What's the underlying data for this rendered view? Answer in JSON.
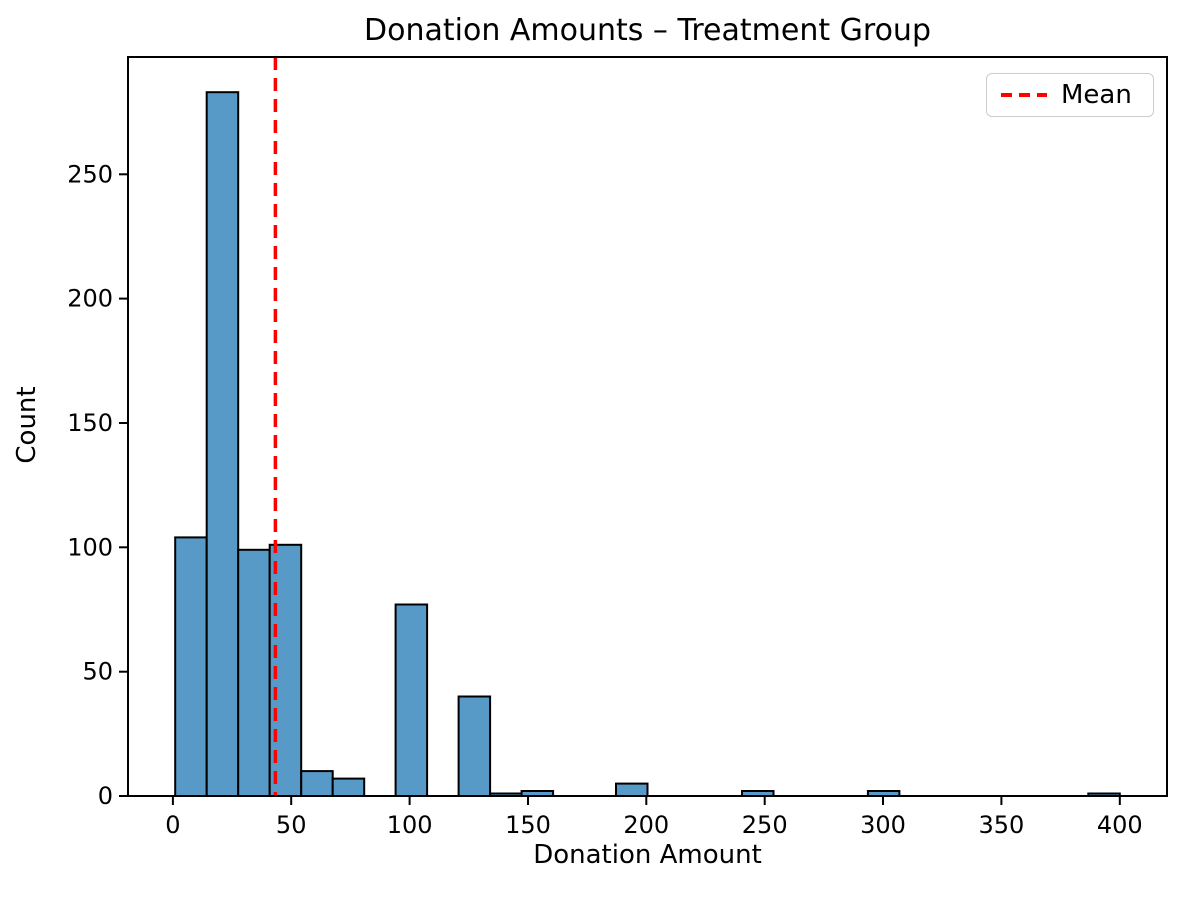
{
  "chart_data": {
    "type": "bar",
    "subtype": "histogram",
    "title": "Donation Amounts – Treatment Group",
    "xlabel": "Donation Amount",
    "ylabel": "Count",
    "bin_edges": [
      1.0,
      14.3,
      27.6,
      40.9,
      54.2,
      67.5,
      80.8,
      94.1,
      107.4,
      120.7,
      134.0,
      147.3,
      160.6,
      173.9,
      187.2,
      200.5,
      213.8,
      227.1,
      240.4,
      253.7,
      267.0,
      280.3,
      293.6,
      306.9,
      320.2,
      333.5,
      346.8,
      360.1,
      373.4,
      386.7,
      400.0
    ],
    "counts": [
      104,
      283,
      99,
      101,
      10,
      7,
      0,
      77,
      0,
      40,
      1,
      2,
      0,
      0,
      5,
      0,
      0,
      0,
      2,
      0,
      0,
      0,
      2,
      0,
      0,
      0,
      0,
      0,
      0,
      1
    ],
    "mean_x": 43.3,
    "x_ticks": [
      0,
      50,
      100,
      150,
      200,
      250,
      300,
      350,
      400
    ],
    "y_ticks": [
      0,
      50,
      100,
      150,
      200,
      250
    ],
    "xlim": [
      -18.95,
      419.95
    ],
    "ylim": [
      0,
      297.15
    ],
    "grid": false,
    "legend": {
      "position": "upper right",
      "entries": [
        {
          "label": "Mean",
          "style": "dashed",
          "color": "#ff0000"
        }
      ]
    },
    "colors": {
      "bar_fill": "#5799c7",
      "bar_edge": "#000000",
      "mean_line": "#ff0000",
      "spine": "#000000",
      "text": "#000000"
    }
  }
}
